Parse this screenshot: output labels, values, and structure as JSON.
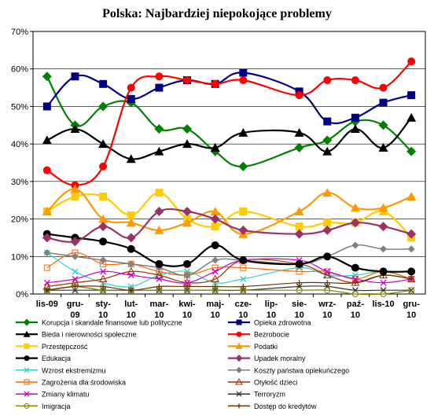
{
  "chart_data": {
    "type": "line",
    "title": "Polska: Najbardziej niepokojące problemy",
    "xlabel": "",
    "ylabel": "",
    "ylim": [
      0,
      70
    ],
    "yticks": [
      0,
      10,
      20,
      30,
      40,
      50,
      60,
      70
    ],
    "ytick_labels": [
      "0%",
      "10%",
      "20%",
      "30%",
      "40%",
      "50%",
      "60%",
      "70%"
    ],
    "grid": true,
    "legend_position": "bottom",
    "categories": [
      "lis-09",
      "gru-09",
      "sty-10",
      "lut-10",
      "mar-10",
      "kwi-10",
      "maj-10",
      "cze-10",
      "lip-10",
      "sie-10",
      "wrz-10",
      "paź-10",
      "lis-10",
      "gru-10"
    ],
    "category_labels": [
      [
        "lis-09"
      ],
      [
        "gru-",
        "09"
      ],
      [
        "sty-",
        "10"
      ],
      [
        "lut-",
        "10"
      ],
      [
        "mar-",
        "10"
      ],
      [
        "kwi-",
        "10"
      ],
      [
        "maj-",
        "10"
      ],
      [
        "cze-",
        "10"
      ],
      [
        "lip-",
        "10"
      ],
      [
        "sie-",
        "10"
      ],
      [
        "wrz-",
        "10"
      ],
      [
        "paź-",
        "10"
      ],
      [
        "lis-10"
      ],
      [
        "gru-",
        "10"
      ]
    ],
    "series": [
      {
        "name": "Korupcja i skandale finansowe lub polityczne",
        "color": "#008000",
        "marker": "diamond",
        "width": 2.2,
        "values": [
          58,
          45,
          50,
          51,
          44,
          44,
          38,
          34,
          null,
          39,
          41,
          46,
          45,
          38
        ]
      },
      {
        "name": "Opieka zdrowotna",
        "color": "#000080",
        "marker": "square",
        "width": 2.2,
        "values": [
          50,
          58,
          56,
          52,
          55,
          57,
          56,
          59,
          null,
          54,
          46,
          47,
          51,
          53
        ]
      },
      {
        "name": "Bieda i nierowności społeczne",
        "color": "#000000",
        "marker": "triangle",
        "width": 2.2,
        "values": [
          41,
          44,
          40,
          36,
          38,
          40,
          39,
          43,
          null,
          43,
          38,
          44,
          39,
          47
        ]
      },
      {
        "name": "Bezrobocie",
        "color": "#FF0000",
        "marker": "circle",
        "width": 2.2,
        "values": [
          33,
          29,
          34,
          55,
          58,
          57,
          56,
          57,
          null,
          53,
          57,
          57,
          55,
          62
        ]
      },
      {
        "name": "Przestępczość",
        "color": "#FFCC00",
        "marker": "square",
        "width": 2.2,
        "values": [
          22,
          26,
          26,
          21,
          27,
          20,
          18,
          22,
          null,
          18,
          19,
          19,
          22,
          15
        ]
      },
      {
        "name": "Podatki",
        "color": "#FF9900",
        "marker": "triangle",
        "width": 2.2,
        "values": [
          22,
          28,
          20,
          19,
          17,
          19,
          22,
          16,
          null,
          22,
          27,
          23,
          23,
          26
        ]
      },
      {
        "name": "Edukacja",
        "color": "#000000",
        "marker": "circle",
        "width": 2.2,
        "values": [
          16,
          15,
          14,
          12,
          8,
          8,
          13,
          9,
          null,
          8,
          10,
          7,
          6,
          6
        ]
      },
      {
        "name": "Upadek moralny",
        "color": "#993366",
        "marker": "diamond",
        "width": 2.2,
        "values": [
          15,
          14,
          18,
          15,
          22,
          22,
          20,
          17,
          null,
          16,
          17,
          19,
          18,
          16
        ]
      },
      {
        "name": "Wzrost ekstremizmu",
        "color": "#33CCCC",
        "marker": "x",
        "width": 1.2,
        "values": [
          11,
          6,
          3,
          2,
          5,
          6,
          3,
          4,
          null,
          7,
          5,
          5,
          6,
          4
        ]
      },
      {
        "name": "Koszty państwa opiekuńczego",
        "color": "#808080",
        "marker": "diamond",
        "width": 1.5,
        "values": [
          11,
          10,
          9,
          8,
          7,
          5,
          9,
          9,
          null,
          8,
          10,
          13,
          12,
          12
        ]
      },
      {
        "name": "Zagrożenia dla środowiska",
        "color": "#FF6600",
        "marker": "square-open",
        "width": 1.2,
        "values": [
          7,
          11,
          8,
          8,
          6,
          5,
          7,
          7,
          null,
          6,
          6,
          4,
          6,
          4
        ]
      },
      {
        "name": "Otyłość dzieci",
        "color": "#993300",
        "marker": "triangle-open",
        "width": 1.2,
        "values": [
          2,
          3,
          4,
          6,
          5,
          3,
          4,
          9,
          null,
          8,
          5,
          3,
          5,
          4
        ]
      },
      {
        "name": "Zmiany klimatu",
        "color": "#CC00CC",
        "marker": "x",
        "width": 1.2,
        "values": [
          3,
          4,
          6,
          5,
          4,
          3,
          6,
          9,
          null,
          9,
          6,
          4,
          3,
          4
        ]
      },
      {
        "name": "Terroryzm",
        "color": "#333333",
        "marker": "x",
        "width": 1.2,
        "values": [
          1,
          1,
          1,
          1,
          1,
          1,
          1,
          1,
          null,
          2,
          2,
          1,
          1,
          1
        ]
      },
      {
        "name": "Imigracja",
        "color": "#808000",
        "marker": "circle-open",
        "width": 1.2,
        "values": [
          1,
          2,
          1,
          1,
          1,
          1,
          1,
          1,
          null,
          1,
          1,
          0,
          0,
          1
        ]
      },
      {
        "name": "Dostęp do kredytów",
        "color": "#663300",
        "marker": "plus",
        "width": 1.2,
        "values": [
          1,
          2,
          2,
          1,
          2,
          2,
          2,
          2,
          null,
          3,
          3,
          3,
          5,
          4
        ]
      }
    ]
  }
}
